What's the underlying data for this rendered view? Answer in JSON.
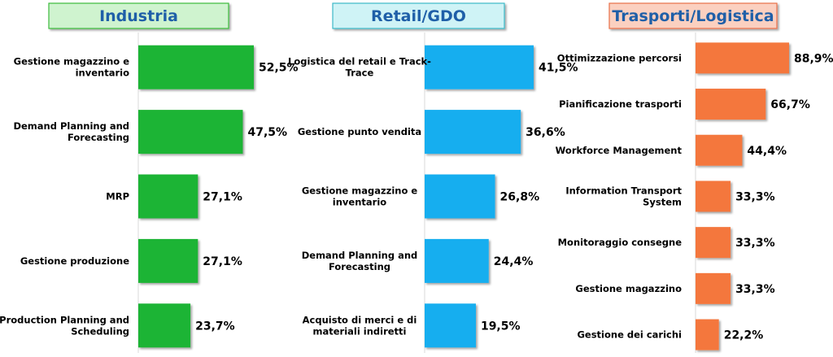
{
  "chart_data": [
    {
      "type": "bar",
      "orientation": "horizontal",
      "title": "Industria",
      "title_color": "#1F5FA8",
      "title_bg": "#CFF3CF",
      "title_border": "#3DBB3D",
      "bar_color": "#1FB435",
      "xlim": [
        0,
        100
      ],
      "categories": [
        [
          "Gestione magazzino e",
          "inventario"
        ],
        [
          "Demand Planning and",
          "Forecasting"
        ],
        [
          "MRP"
        ],
        [
          "Gestione produzione"
        ],
        [
          "Production Planning and",
          "Scheduling"
        ]
      ],
      "values": [
        52.5,
        47.5,
        27.1,
        27.1,
        23.7
      ],
      "value_labels": [
        "52,5%",
        "47,5%",
        "27,1%",
        "27,1%",
        "23,7%"
      ]
    },
    {
      "type": "bar",
      "orientation": "horizontal",
      "title": "Retail/GDO",
      "title_color": "#1F5FA8",
      "title_bg": "#CFF3F6",
      "title_border": "#3DB8C8",
      "bar_color": "#12AEEF",
      "xlim": [
        0,
        100
      ],
      "categories": [
        [
          "Logistica del retail e Track-",
          "Trace"
        ],
        [
          "Gestione punto vendita"
        ],
        [
          "Gestione magazzino e",
          "inventario"
        ],
        [
          "Demand Planning and",
          "Forecasting"
        ],
        [
          "Acquisto di merci e di",
          "materiali indiretti"
        ]
      ],
      "values": [
        41.5,
        36.6,
        26.8,
        24.4,
        19.5
      ],
      "value_labels": [
        "41,5%",
        "36,6%",
        "26,8%",
        "24,4%",
        "19,5%"
      ]
    },
    {
      "type": "bar",
      "orientation": "horizontal",
      "title": "Trasporti/Logistica",
      "title_color": "#1F5FA8",
      "title_bg": "#FBD0C0",
      "title_border": "#E8714A",
      "bar_color": "#F4773D",
      "xlim": [
        0,
        100
      ],
      "categories": [
        [
          "Ottimizzazione percorsi"
        ],
        [
          "Pianificazione trasporti"
        ],
        [
          "Workforce Management"
        ],
        [
          "Information Transport",
          "System"
        ],
        [
          "Monitoraggio consegne"
        ],
        [
          "Gestione magazzino"
        ],
        [
          "Gestione dei carichi"
        ]
      ],
      "values": [
        88.9,
        66.7,
        44.4,
        33.3,
        33.3,
        33.3,
        22.2
      ],
      "value_labels": [
        "88,9%",
        "66,7%",
        "44,4%",
        "33,3%",
        "33,3%",
        "33,3%",
        "22,2%"
      ]
    }
  ]
}
